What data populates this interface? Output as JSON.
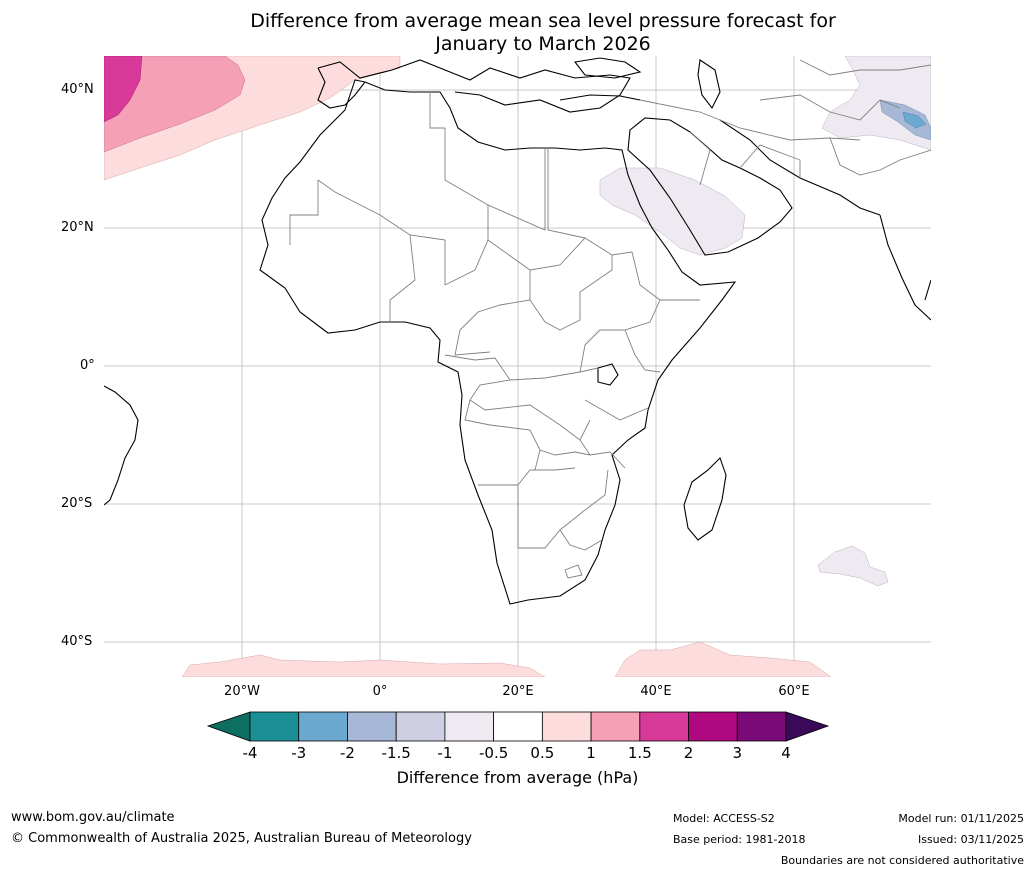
{
  "title": {
    "line1": "Difference from average mean sea level pressure forecast for",
    "line2": "January to March 2026"
  },
  "map": {
    "lat_labels": [
      "40°N",
      "20°N",
      "0°",
      "20°S",
      "40°S"
    ],
    "lon_labels": [
      "20°W",
      "0°",
      "20°E",
      "40°E",
      "60°E"
    ],
    "extent": {
      "lon_min": -40,
      "lon_max": 80,
      "lat_min": -45,
      "lat_max": 45
    }
  },
  "colorbar": {
    "ticks": [
      "-4",
      "-3",
      "-2",
      "-1.5",
      "-1",
      "-0.5",
      "0.5",
      "1",
      "1.5",
      "2",
      "3",
      "4"
    ],
    "under_color": "#0e6e62",
    "over_color": "#3a0a5a",
    "colors": [
      "#1a8f95",
      "#6ba9d1",
      "#a6b8d6",
      "#cfcfe4",
      "#efeaf2",
      "#ffffff",
      "#fcdcdc",
      "#f6a0b8",
      "#d93a99",
      "#b0087e",
      "#7a0a78"
    ],
    "label": "Difference from average (hPa)"
  },
  "footer": {
    "website": "www.bom.gov.au/climate",
    "copyright": "© Commonwealth of Australia 2025, Australian Bureau of Meteorology",
    "model": "Model: ACCESS-S2",
    "base_period": "Base period: 1981-2018",
    "model_run": "Model run: 01/11/2025",
    "issued": "Issued: 03/11/2025",
    "disclaimer": "Boundaries are not considered authoritative"
  }
}
